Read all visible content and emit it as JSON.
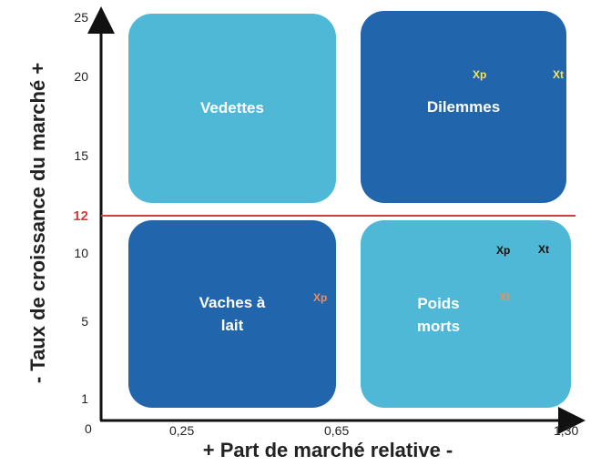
{
  "axes": {
    "x_label": "+ Part de marché relative -",
    "y_label": "- Taux de croissance du marché +",
    "origin_label": "0",
    "y_ticks": [
      "25",
      "20",
      "15",
      "12",
      "10",
      "5",
      "1"
    ],
    "x_ticks": [
      "0,25",
      "0,65",
      "1,30"
    ],
    "threshold_color": "#d93c3c",
    "axis_color": "#111111"
  },
  "quadrants": {
    "vedettes": "Vedettes",
    "dilemmes": "Dilemmes",
    "vaches": "Vaches à lait",
    "poids": "Poids morts"
  },
  "markers": {
    "dilemmes_xp": "Xp",
    "dilemmes_xt": "Xt",
    "poids_xp": "Xp",
    "poids_xt": "Xt",
    "poids_xt_orange": "Xt",
    "vaches_xp": "Xp"
  },
  "colors": {
    "light_quadrant": "#4fb8d6",
    "dark_quadrant": "#2166ad",
    "marker_yellow": "#f2e36b",
    "marker_orange": "#f08c5a",
    "marker_dark": "#111111"
  }
}
